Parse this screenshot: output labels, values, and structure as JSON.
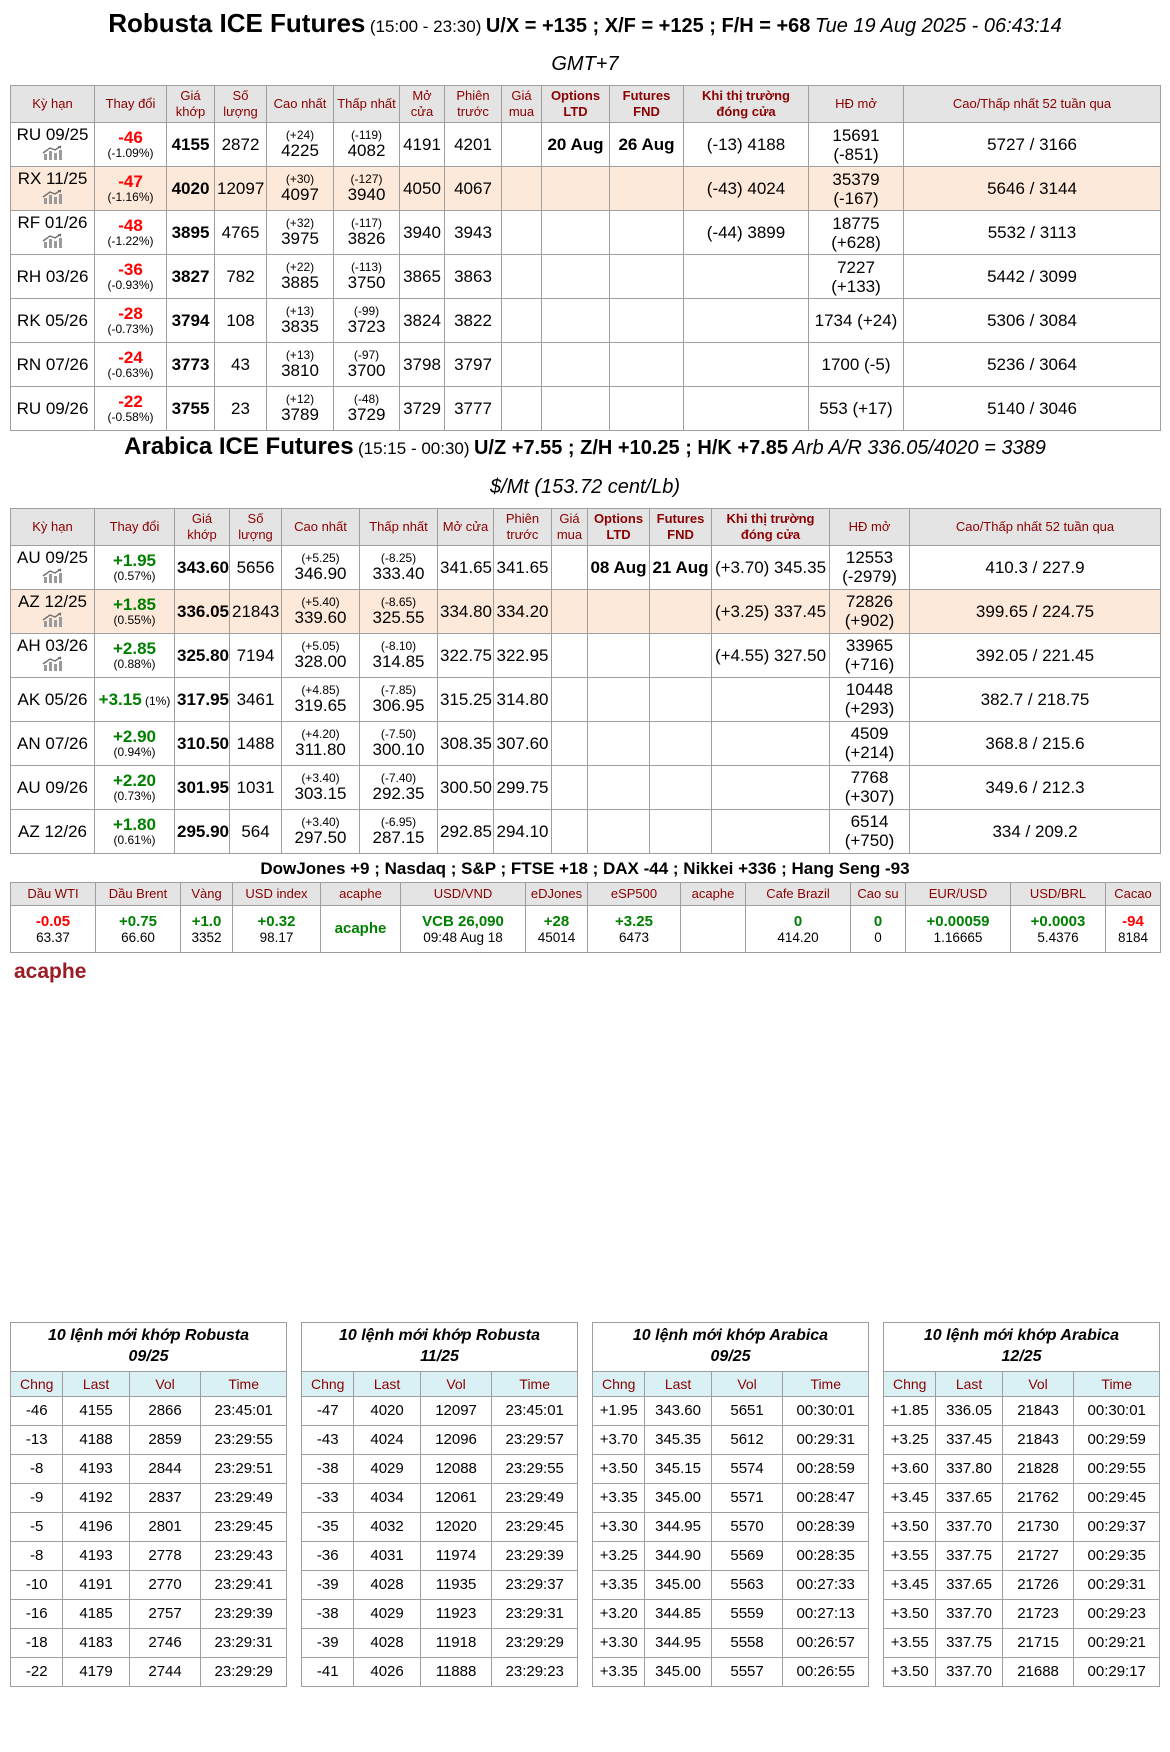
{
  "robusta": {
    "title": {
      "name": "Robusta ICE Futures",
      "hours": "(15:00 - 23:30)",
      "spreads": "U/X = +135 ; X/F = +125 ; F/H = +68",
      "datetime": "Tue 19 Aug 2025 - 06:43:14"
    },
    "timezone": "GMT+7",
    "headers": [
      "Kỳ hạn",
      "Thay đổi",
      "Giá khớp",
      "Số lượng",
      "Cao nhất",
      "Thấp nhất",
      "Mở cửa",
      "Phiên trước",
      "Giá mua",
      "Options LTD",
      "Futures FND",
      "Khi thị trường đóng cửa",
      "HĐ mở",
      "Cao/Thấp nhất 52 tuần qua"
    ],
    "rows": [
      {
        "contract": "RU 09/25",
        "chart_icon": true,
        "highlight": false,
        "change": "-46",
        "change_pct": "(-1.09%)",
        "dir": "down",
        "pct_inline": false,
        "price": "4155",
        "volume": "2872",
        "high_d": "(+24)",
        "high": "4225",
        "low_d": "(-119)",
        "low": "4082",
        "open": "4191",
        "prev": "4201",
        "bid": "",
        "opt_ltd": "20 Aug",
        "fut_fnd": "26 Aug",
        "after_close": "(-13) 4188",
        "oi": [
          "15691",
          "(-851)"
        ],
        "wk52": "5727 / 3166"
      },
      {
        "contract": "RX 11/25",
        "chart_icon": true,
        "highlight": true,
        "change": "-47",
        "change_pct": "(-1.16%)",
        "dir": "down",
        "pct_inline": false,
        "price": "4020",
        "volume": "12097",
        "high_d": "(+30)",
        "high": "4097",
        "low_d": "(-127)",
        "low": "3940",
        "open": "4050",
        "prev": "4067",
        "bid": "",
        "opt_ltd": "",
        "fut_fnd": "",
        "after_close": "(-43) 4024",
        "oi": [
          "35379",
          "(-167)"
        ],
        "wk52": "5646 / 3144"
      },
      {
        "contract": "RF 01/26",
        "chart_icon": true,
        "highlight": false,
        "change": "-48",
        "change_pct": "(-1.22%)",
        "dir": "down",
        "pct_inline": false,
        "price": "3895",
        "volume": "4765",
        "high_d": "(+32)",
        "high": "3975",
        "low_d": "(-117)",
        "low": "3826",
        "open": "3940",
        "prev": "3943",
        "bid": "",
        "opt_ltd": "",
        "fut_fnd": "",
        "after_close": "(-44) 3899",
        "oi": [
          "18775",
          "(+628)"
        ],
        "wk52": "5532 / 3113"
      },
      {
        "contract": "RH 03/26",
        "chart_icon": false,
        "highlight": false,
        "change": "-36",
        "change_pct": "(-0.93%)",
        "dir": "down",
        "pct_inline": false,
        "price": "3827",
        "volume": "782",
        "high_d": "(+22)",
        "high": "3885",
        "low_d": "(-113)",
        "low": "3750",
        "open": "3865",
        "prev": "3863",
        "bid": "",
        "opt_ltd": "",
        "fut_fnd": "",
        "after_close": "",
        "oi": [
          "7227",
          "(+133)"
        ],
        "wk52": "5442 / 3099"
      },
      {
        "contract": "RK 05/26",
        "chart_icon": false,
        "highlight": false,
        "change": "-28",
        "change_pct": "(-0.73%)",
        "dir": "down",
        "pct_inline": false,
        "price": "3794",
        "volume": "108",
        "high_d": "(+13)",
        "high": "3835",
        "low_d": "(-99)",
        "low": "3723",
        "open": "3824",
        "prev": "3822",
        "bid": "",
        "opt_ltd": "",
        "fut_fnd": "",
        "after_close": "",
        "oi": [
          "1734 (+24)"
        ],
        "wk52": "5306 / 3084"
      },
      {
        "contract": "RN 07/26",
        "chart_icon": false,
        "highlight": false,
        "change": "-24",
        "change_pct": "(-0.63%)",
        "dir": "down",
        "pct_inline": false,
        "price": "3773",
        "volume": "43",
        "high_d": "(+13)",
        "high": "3810",
        "low_d": "(-97)",
        "low": "3700",
        "open": "3798",
        "prev": "3797",
        "bid": "",
        "opt_ltd": "",
        "fut_fnd": "",
        "after_close": "",
        "oi": [
          "1700 (-5)"
        ],
        "wk52": "5236 / 3064"
      },
      {
        "contract": "RU 09/26",
        "chart_icon": false,
        "highlight": false,
        "change": "-22",
        "change_pct": "(-0.58%)",
        "dir": "down",
        "pct_inline": false,
        "price": "3755",
        "volume": "23",
        "high_d": "(+12)",
        "high": "3789",
        "low_d": "(-48)",
        "low": "3729",
        "open": "3729",
        "prev": "3777",
        "bid": "",
        "opt_ltd": "",
        "fut_fnd": "",
        "after_close": "",
        "oi": [
          "553 (+17)"
        ],
        "wk52": "5140 / 3046"
      }
    ]
  },
  "arabica": {
    "title": {
      "name": "Arabica ICE Futures",
      "hours": "(15:15 - 00:30)",
      "spreads": "U/Z +7.55 ; Z/H +10.25 ; H/K +7.85",
      "ratio": "Arb A/R 336.05/4020 = 3389"
    },
    "unit_line": "$/Mt (153.72 cent/Lb)",
    "headers": [
      "Kỳ hạn",
      "Thay đổi",
      "Giá khớp",
      "Số lượng",
      "Cao nhất",
      "Thấp nhất",
      "Mở cửa",
      "Phiên trước",
      "Giá mua",
      "Options LTD",
      "Futures FND",
      "Khi thị trường đóng cửa",
      "HĐ mở",
      "Cao/Thấp nhất 52 tuần qua"
    ],
    "rows": [
      {
        "contract": "AU 09/25",
        "chart_icon": true,
        "highlight": false,
        "change": "+1.95",
        "change_pct": "(0.57%)",
        "dir": "up",
        "pct_inline": false,
        "price": "343.60",
        "volume": "5656",
        "high_d": "(+5.25)",
        "high": "346.90",
        "low_d": "(-8.25)",
        "low": "333.40",
        "open": "341.65",
        "prev": "341.65",
        "bid": "",
        "opt_ltd": "08 Aug",
        "fut_fnd": "21 Aug",
        "after_close": "(+3.70) 345.35",
        "oi": [
          "12553",
          "(-2979)"
        ],
        "wk52": "410.3 / 227.9"
      },
      {
        "contract": "AZ 12/25",
        "chart_icon": true,
        "highlight": true,
        "change": "+1.85",
        "change_pct": "(0.55%)",
        "dir": "up",
        "pct_inline": false,
        "price": "336.05",
        "volume": "21843",
        "high_d": "(+5.40)",
        "high": "339.60",
        "low_d": "(-8.65)",
        "low": "325.55",
        "open": "334.80",
        "prev": "334.20",
        "bid": "",
        "opt_ltd": "",
        "fut_fnd": "",
        "after_close": "(+3.25) 337.45",
        "oi": [
          "72826",
          "(+902)"
        ],
        "wk52": "399.65 / 224.75"
      },
      {
        "contract": "AH 03/26",
        "chart_icon": true,
        "highlight": false,
        "change": "+2.85",
        "change_pct": "(0.88%)",
        "dir": "up",
        "pct_inline": false,
        "price": "325.80",
        "volume": "7194",
        "high_d": "(+5.05)",
        "high": "328.00",
        "low_d": "(-8.10)",
        "low": "314.85",
        "open": "322.75",
        "prev": "322.95",
        "bid": "",
        "opt_ltd": "",
        "fut_fnd": "",
        "after_close": "(+4.55) 327.50",
        "oi": [
          "33965",
          "(+716)"
        ],
        "wk52": "392.05 / 221.45"
      },
      {
        "contract": "AK 05/26",
        "chart_icon": false,
        "highlight": false,
        "change": "+3.15",
        "change_pct": "(1%)",
        "dir": "up",
        "pct_inline": true,
        "price": "317.95",
        "volume": "3461",
        "high_d": "(+4.85)",
        "high": "319.65",
        "low_d": "(-7.85)",
        "low": "306.95",
        "open": "315.25",
        "prev": "314.80",
        "bid": "",
        "opt_ltd": "",
        "fut_fnd": "",
        "after_close": "",
        "oi": [
          "10448",
          "(+293)"
        ],
        "wk52": "382.7 / 218.75"
      },
      {
        "contract": "AN 07/26",
        "chart_icon": false,
        "highlight": false,
        "change": "+2.90",
        "change_pct": "(0.94%)",
        "dir": "up",
        "pct_inline": false,
        "price": "310.50",
        "volume": "1488",
        "high_d": "(+4.20)",
        "high": "311.80",
        "low_d": "(-7.50)",
        "low": "300.10",
        "open": "308.35",
        "prev": "307.60",
        "bid": "",
        "opt_ltd": "",
        "fut_fnd": "",
        "after_close": "",
        "oi": [
          "4509",
          "(+214)"
        ],
        "wk52": "368.8 / 215.6"
      },
      {
        "contract": "AU 09/26",
        "chart_icon": false,
        "highlight": false,
        "change": "+2.20",
        "change_pct": "(0.73%)",
        "dir": "up",
        "pct_inline": false,
        "price": "301.95",
        "volume": "1031",
        "high_d": "(+3.40)",
        "high": "303.15",
        "low_d": "(-7.40)",
        "low": "292.35",
        "open": "300.50",
        "prev": "299.75",
        "bid": "",
        "opt_ltd": "",
        "fut_fnd": "",
        "after_close": "",
        "oi": [
          "7768",
          "(+307)"
        ],
        "wk52": "349.6 / 212.3"
      },
      {
        "contract": "AZ 12/26",
        "chart_icon": false,
        "highlight": false,
        "change": "+1.80",
        "change_pct": "(0.61%)",
        "dir": "up",
        "pct_inline": false,
        "price": "295.90",
        "volume": "564",
        "high_d": "(+3.40)",
        "high": "297.50",
        "low_d": "(-6.95)",
        "low": "287.15",
        "open": "292.85",
        "prev": "294.10",
        "bid": "",
        "opt_ltd": "",
        "fut_fnd": "",
        "after_close": "",
        "oi": [
          "6514",
          "(+750)"
        ],
        "wk52": "334 / 209.2"
      }
    ]
  },
  "market_line": "DowJones +9 ; Nasdaq ; S&P ; FTSE +18 ; DAX -44 ; Nikkei +336 ; Hang Seng -93",
  "indicators": {
    "columns": [
      {
        "label": "Dầu WTI",
        "main": "-0.05",
        "color": "red",
        "sub": "63.37"
      },
      {
        "label": "Dầu Brent",
        "main": "+0.75",
        "color": "green",
        "sub": "66.60"
      },
      {
        "label": "Vàng",
        "main": "+1.0",
        "color": "green",
        "sub": "3352"
      },
      {
        "label": "USD index",
        "main": "+0.32",
        "color": "green",
        "sub": "98.17"
      },
      {
        "label": "acaphe",
        "main": "acaphe",
        "color": "green",
        "sub": ""
      },
      {
        "label": "USD/VND",
        "main": "VCB 26,090",
        "color": "green",
        "sub": "09:48 Aug 18"
      },
      {
        "label": "eDJones",
        "main": "+28",
        "color": "green",
        "sub": "45014"
      },
      {
        "label": "eSP500",
        "main": "+3.25",
        "color": "green",
        "sub": "6473"
      },
      {
        "label": "acaphe",
        "main": "",
        "color": "green",
        "sub": ""
      },
      {
        "label": "Cafe Brazil",
        "main": "0",
        "color": "green",
        "sub": "414.20"
      },
      {
        "label": "Cao su",
        "main": "0",
        "color": "green",
        "sub": "0"
      },
      {
        "label": "EUR/USD",
        "main": "+0.00059",
        "color": "green",
        "sub": "1.16665"
      },
      {
        "label": "USD/BRL",
        "main": "+0.0003",
        "color": "green",
        "sub": "5.4376"
      },
      {
        "label": "Cacao",
        "main": "-94",
        "color": "red",
        "sub": "8184"
      }
    ]
  },
  "brand": "acaphe",
  "order_tables": [
    {
      "title": "10 lệnh mới khớp Robusta",
      "contract": "09/25",
      "headers": [
        "Chng",
        "Last",
        "Vol",
        "Time"
      ],
      "rows": [
        [
          "-46",
          "4155",
          "2866",
          "23:45:01"
        ],
        [
          "-13",
          "4188",
          "2859",
          "23:29:55"
        ],
        [
          "-8",
          "4193",
          "2844",
          "23:29:51"
        ],
        [
          "-9",
          "4192",
          "2837",
          "23:29:49"
        ],
        [
          "-5",
          "4196",
          "2801",
          "23:29:45"
        ],
        [
          "-8",
          "4193",
          "2778",
          "23:29:43"
        ],
        [
          "-10",
          "4191",
          "2770",
          "23:29:41"
        ],
        [
          "-16",
          "4185",
          "2757",
          "23:29:39"
        ],
        [
          "-18",
          "4183",
          "2746",
          "23:29:31"
        ],
        [
          "-22",
          "4179",
          "2744",
          "23:29:29"
        ]
      ]
    },
    {
      "title": "10 lệnh mới khớp Robusta",
      "contract": "11/25",
      "headers": [
        "Chng",
        "Last",
        "Vol",
        "Time"
      ],
      "rows": [
        [
          "-47",
          "4020",
          "12097",
          "23:45:01"
        ],
        [
          "-43",
          "4024",
          "12096",
          "23:29:57"
        ],
        [
          "-38",
          "4029",
          "12088",
          "23:29:55"
        ],
        [
          "-33",
          "4034",
          "12061",
          "23:29:49"
        ],
        [
          "-35",
          "4032",
          "12020",
          "23:29:45"
        ],
        [
          "-36",
          "4031",
          "11974",
          "23:29:39"
        ],
        [
          "-39",
          "4028",
          "11935",
          "23:29:37"
        ],
        [
          "-38",
          "4029",
          "11923",
          "23:29:31"
        ],
        [
          "-39",
          "4028",
          "11918",
          "23:29:29"
        ],
        [
          "-41",
          "4026",
          "11888",
          "23:29:23"
        ]
      ]
    },
    {
      "title": "10 lệnh mới khớp Arabica",
      "contract": "09/25",
      "headers": [
        "Chng",
        "Last",
        "Vol",
        "Time"
      ],
      "rows": [
        [
          "+1.95",
          "343.60",
          "5651",
          "00:30:01"
        ],
        [
          "+3.70",
          "345.35",
          "5612",
          "00:29:31"
        ],
        [
          "+3.50",
          "345.15",
          "5574",
          "00:28:59"
        ],
        [
          "+3.35",
          "345.00",
          "5571",
          "00:28:47"
        ],
        [
          "+3.30",
          "344.95",
          "5570",
          "00:28:39"
        ],
        [
          "+3.25",
          "344.90",
          "5569",
          "00:28:35"
        ],
        [
          "+3.35",
          "345.00",
          "5563",
          "00:27:33"
        ],
        [
          "+3.20",
          "344.85",
          "5559",
          "00:27:13"
        ],
        [
          "+3.30",
          "344.95",
          "5558",
          "00:26:57"
        ],
        [
          "+3.35",
          "345.00",
          "5557",
          "00:26:55"
        ]
      ]
    },
    {
      "title": "10 lệnh mới khớp Arabica",
      "contract": "12/25",
      "headers": [
        "Chng",
        "Last",
        "Vol",
        "Time"
      ],
      "rows": [
        [
          "+1.85",
          "336.05",
          "21843",
          "00:30:01"
        ],
        [
          "+3.25",
          "337.45",
          "21843",
          "00:29:59"
        ],
        [
          "+3.60",
          "337.80",
          "21828",
          "00:29:55"
        ],
        [
          "+3.45",
          "337.65",
          "21762",
          "00:29:45"
        ],
        [
          "+3.50",
          "337.70",
          "21730",
          "00:29:37"
        ],
        [
          "+3.55",
          "337.75",
          "21727",
          "00:29:35"
        ],
        [
          "+3.45",
          "337.65",
          "21726",
          "00:29:31"
        ],
        [
          "+3.50",
          "337.70",
          "21723",
          "00:29:23"
        ],
        [
          "+3.55",
          "337.75",
          "21715",
          "00:29:21"
        ],
        [
          "+3.50",
          "337.70",
          "21688",
          "00:29:17"
        ]
      ]
    }
  ]
}
